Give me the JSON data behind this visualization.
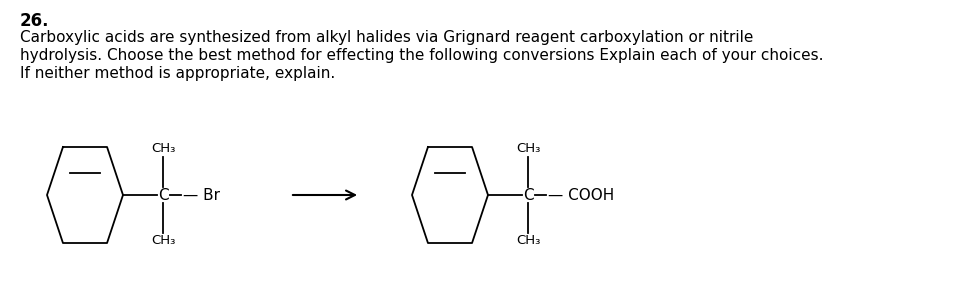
{
  "title_number": "26.",
  "paragraph_line1": "Carboxylic acids are synthesized from alkyl halides via Grignard reagent carboxylation or nitrile",
  "paragraph_line2": "hydrolysis. Choose the best method for effecting the following conversions Explain each of your choices.",
  "paragraph_line3": "If neither method is appropriate, explain.",
  "font_family": "DejaVu Sans",
  "text_fontsize": 11.0,
  "title_fontsize": 12,
  "bg_color": "#ffffff",
  "text_color": "#000000",
  "fig_width": 9.58,
  "fig_height": 2.83,
  "dpi": 100
}
